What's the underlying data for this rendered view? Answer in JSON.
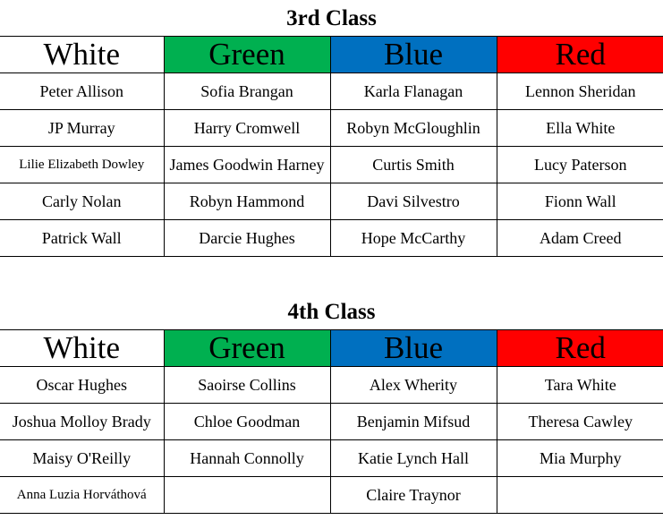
{
  "house_colors": {
    "White": "#ffffff",
    "Green": "#00b050",
    "Blue": "#0070c0",
    "Red": "#ff0000"
  },
  "tables": [
    {
      "title": "3rd Class",
      "headers": [
        "White",
        "Green",
        "Blue",
        "Red"
      ],
      "rows": [
        [
          "Peter Allison",
          "Sofia Brangan",
          "Karla Flanagan",
          "Lennon Sheridan"
        ],
        [
          "JP Murray",
          "Harry Cromwell",
          "Robyn McGloughlin",
          "Ella White"
        ],
        [
          "Lilie Elizabeth Dowley",
          "James Goodwin Harney",
          "Curtis Smith",
          "Lucy Paterson"
        ],
        [
          "Carly Nolan",
          "Robyn Hammond",
          "Davi Silvestro",
          "Fionn Wall"
        ],
        [
          "Patrick Wall",
          "Darcie Hughes",
          "Hope  McCarthy",
          "Adam Creed"
        ]
      ]
    },
    {
      "title": "4th Class",
      "headers": [
        "White",
        "Green",
        "Blue",
        "Red"
      ],
      "rows": [
        [
          "Oscar Hughes",
          "Saoirse Collins",
          "Alex Wherity",
          "Tara White"
        ],
        [
          "Joshua Molloy Brady",
          "Chloe Goodman",
          "Benjamin Mifsud",
          "Theresa Cawley"
        ],
        [
          "Maisy O'Reilly",
          "Hannah Connolly",
          "Katie Lynch Hall",
          "Mia Murphy"
        ],
        [
          "Anna Luzia Horváthová",
          "",
          "Claire Traynor",
          ""
        ]
      ]
    }
  ]
}
